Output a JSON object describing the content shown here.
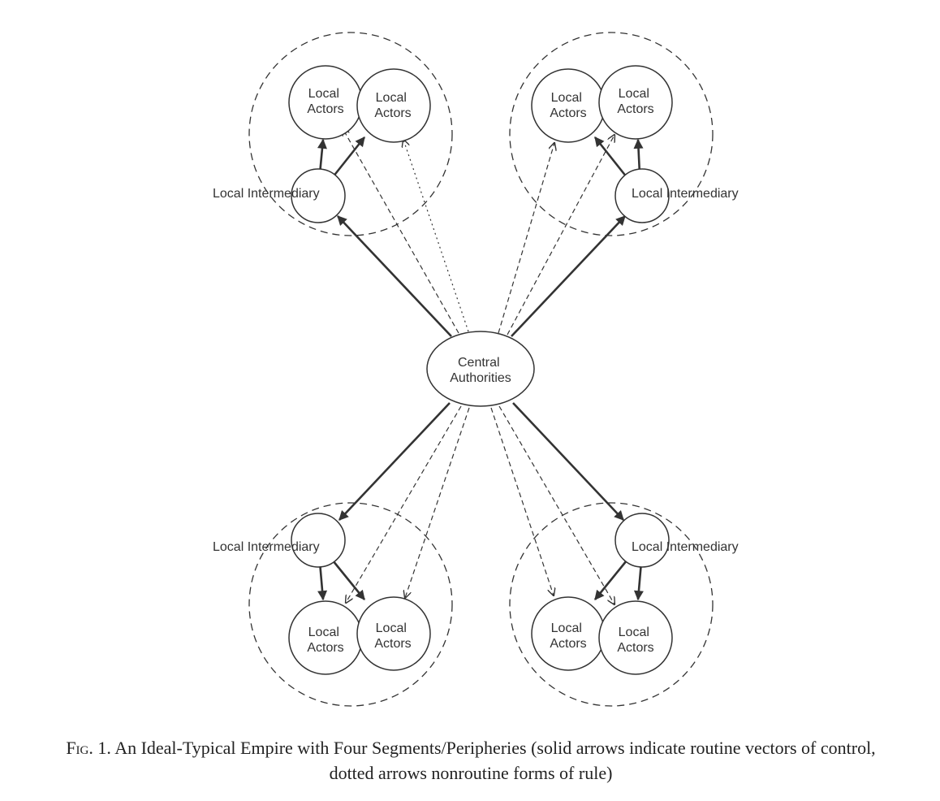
{
  "nodes": {
    "center_line1": "Central",
    "center_line2": "Authorities",
    "actor_line1": "Local",
    "actor_line2": "Actors",
    "intermediary": "Local Intermediary"
  },
  "caption": {
    "fig_label": "Fig. 1.",
    "text": "An Ideal-Typical Empire with Four Segments/Peripheries (solid arrows indicate routine vectors of control, dotted arrows nonroutine forms of rule)"
  },
  "colors": {
    "ink": "#333333",
    "background": "#ffffff"
  }
}
